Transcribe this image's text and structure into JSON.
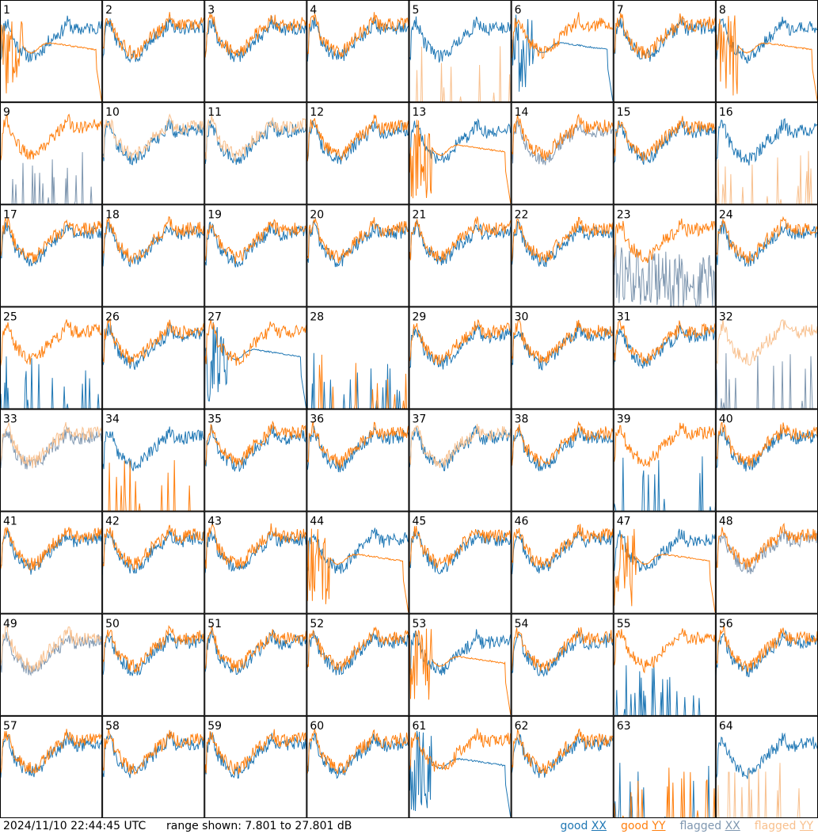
{
  "footer": {
    "timestamp": "2024/11/10 22:44:45 UTC",
    "range_text": "range shown: 7.801 to 27.801 dB"
  },
  "legend": [
    {
      "word": "good",
      "pol": "XX",
      "color": "#1f77b4"
    },
    {
      "word": "good",
      "pol": "YY",
      "color": "#ff7f0e"
    },
    {
      "word": "flagged",
      "pol": "XX",
      "color": "#7f97b0"
    },
    {
      "word": "flagged",
      "pol": "YY",
      "color": "#f8c08e"
    }
  ],
  "chart_data": {
    "type": "line",
    "ylim": [
      7.801,
      27.801
    ],
    "units": "dB",
    "colors": {
      "good_xx": "#1f77b4",
      "good_yy": "#ff7f0e",
      "flagged_xx": "#7f97b0",
      "flagged_yy": "#f8c08e"
    },
    "grid": {
      "rows": 8,
      "cols": 8
    },
    "panels": [
      {
        "id": "1",
        "xx": "good",
        "yy": "good",
        "xx_shape": "normal",
        "yy_shape": "drop"
      },
      {
        "id": "2",
        "xx": "good",
        "yy": "good",
        "xx_shape": "normal",
        "yy_shape": "normal"
      },
      {
        "id": "3",
        "xx": "good",
        "yy": "good",
        "xx_shape": "normal",
        "yy_shape": "normal"
      },
      {
        "id": "4",
        "xx": "good",
        "yy": "good",
        "xx_shape": "normal",
        "yy_shape": "normal"
      },
      {
        "id": "5",
        "xx": "good",
        "yy": "flagged",
        "xx_shape": "normal",
        "yy_shape": "low"
      },
      {
        "id": "6",
        "xx": "good",
        "yy": "good",
        "xx_shape": "drop",
        "yy_shape": "normal"
      },
      {
        "id": "7",
        "xx": "good",
        "yy": "good",
        "xx_shape": "normal",
        "yy_shape": "normal"
      },
      {
        "id": "8",
        "xx": "good",
        "yy": "good",
        "xx_shape": "normal",
        "yy_shape": "drop"
      },
      {
        "id": "9",
        "xx": "flagged",
        "yy": "good",
        "xx_shape": "low",
        "yy_shape": "normal"
      },
      {
        "id": "10",
        "xx": "good",
        "yy": "flagged",
        "xx_shape": "normal",
        "yy_shape": "normal"
      },
      {
        "id": "11",
        "xx": "good",
        "yy": "flagged",
        "xx_shape": "normal",
        "yy_shape": "normal"
      },
      {
        "id": "12",
        "xx": "good",
        "yy": "good",
        "xx_shape": "normal",
        "yy_shape": "normal"
      },
      {
        "id": "13",
        "xx": "good",
        "yy": "good",
        "xx_shape": "normal",
        "yy_shape": "drop"
      },
      {
        "id": "14",
        "xx": "flagged",
        "yy": "good",
        "xx_shape": "normal",
        "yy_shape": "normal"
      },
      {
        "id": "15",
        "xx": "good",
        "yy": "good",
        "xx_shape": "normal",
        "yy_shape": "normal"
      },
      {
        "id": "16",
        "xx": "good",
        "yy": "flagged",
        "xx_shape": "normal",
        "yy_shape": "low"
      },
      {
        "id": "17",
        "xx": "good",
        "yy": "good",
        "xx_shape": "normal",
        "yy_shape": "normal"
      },
      {
        "id": "18",
        "xx": "good",
        "yy": "good",
        "xx_shape": "normal",
        "yy_shape": "normal"
      },
      {
        "id": "19",
        "xx": "good",
        "yy": "good",
        "xx_shape": "normal",
        "yy_shape": "normal"
      },
      {
        "id": "20",
        "xx": "good",
        "yy": "good",
        "xx_shape": "normal",
        "yy_shape": "normal"
      },
      {
        "id": "21",
        "xx": "good",
        "yy": "good",
        "xx_shape": "normal",
        "yy_shape": "normal"
      },
      {
        "id": "22",
        "xx": "good",
        "yy": "good",
        "xx_shape": "normal",
        "yy_shape": "normal"
      },
      {
        "id": "23",
        "xx": "flagged",
        "yy": "good",
        "xx_shape": "noisy",
        "yy_shape": "normal"
      },
      {
        "id": "24",
        "xx": "good",
        "yy": "good",
        "xx_shape": "normal",
        "yy_shape": "normal"
      },
      {
        "id": "25",
        "xx": "good",
        "yy": "good",
        "xx_shape": "low",
        "yy_shape": "normal"
      },
      {
        "id": "26",
        "xx": "good",
        "yy": "good",
        "xx_shape": "normal",
        "yy_shape": "normal"
      },
      {
        "id": "27",
        "xx": "good",
        "yy": "good",
        "xx_shape": "drop",
        "yy_shape": "normal"
      },
      {
        "id": "28",
        "xx": "good",
        "yy": "good",
        "xx_shape": "low",
        "yy_shape": "low"
      },
      {
        "id": "29",
        "xx": "good",
        "yy": "good",
        "xx_shape": "normal",
        "yy_shape": "normal"
      },
      {
        "id": "30",
        "xx": "good",
        "yy": "good",
        "xx_shape": "normal",
        "yy_shape": "normal"
      },
      {
        "id": "31",
        "xx": "good",
        "yy": "good",
        "xx_shape": "normal",
        "yy_shape": "normal"
      },
      {
        "id": "32",
        "xx": "flagged",
        "yy": "flagged",
        "xx_shape": "low",
        "yy_shape": "normal"
      },
      {
        "id": "33",
        "xx": "flagged",
        "yy": "flagged",
        "xx_shape": "normal",
        "yy_shape": "normal"
      },
      {
        "id": "34",
        "xx": "good",
        "yy": "good",
        "xx_shape": "normal",
        "yy_shape": "low"
      },
      {
        "id": "35",
        "xx": "good",
        "yy": "good",
        "xx_shape": "normal",
        "yy_shape": "normal"
      },
      {
        "id": "36",
        "xx": "good",
        "yy": "good",
        "xx_shape": "normal",
        "yy_shape": "normal"
      },
      {
        "id": "37",
        "xx": "good",
        "yy": "flagged",
        "xx_shape": "normal",
        "yy_shape": "normal"
      },
      {
        "id": "38",
        "xx": "good",
        "yy": "good",
        "xx_shape": "normal",
        "yy_shape": "normal"
      },
      {
        "id": "39",
        "xx": "good",
        "yy": "good",
        "xx_shape": "low",
        "yy_shape": "normal"
      },
      {
        "id": "40",
        "xx": "good",
        "yy": "good",
        "xx_shape": "normal",
        "yy_shape": "normal"
      },
      {
        "id": "41",
        "xx": "good",
        "yy": "good",
        "xx_shape": "normal",
        "yy_shape": "normal"
      },
      {
        "id": "42",
        "xx": "good",
        "yy": "good",
        "xx_shape": "normal",
        "yy_shape": "normal"
      },
      {
        "id": "43",
        "xx": "good",
        "yy": "good",
        "xx_shape": "normal",
        "yy_shape": "normal"
      },
      {
        "id": "44",
        "xx": "good",
        "yy": "good",
        "xx_shape": "normal",
        "yy_shape": "drop"
      },
      {
        "id": "45",
        "xx": "good",
        "yy": "good",
        "xx_shape": "normal",
        "yy_shape": "normal"
      },
      {
        "id": "46",
        "xx": "good",
        "yy": "good",
        "xx_shape": "normal",
        "yy_shape": "normal"
      },
      {
        "id": "47",
        "xx": "good",
        "yy": "good",
        "xx_shape": "normal",
        "yy_shape": "drop"
      },
      {
        "id": "48",
        "xx": "flagged",
        "yy": "good",
        "xx_shape": "normal",
        "yy_shape": "normal"
      },
      {
        "id": "49",
        "xx": "flagged",
        "yy": "flagged",
        "xx_shape": "normal",
        "yy_shape": "normal"
      },
      {
        "id": "50",
        "xx": "good",
        "yy": "good",
        "xx_shape": "normal",
        "yy_shape": "normal"
      },
      {
        "id": "51",
        "xx": "good",
        "yy": "good",
        "xx_shape": "normal",
        "yy_shape": "normal"
      },
      {
        "id": "52",
        "xx": "good",
        "yy": "good",
        "xx_shape": "normal",
        "yy_shape": "normal"
      },
      {
        "id": "53",
        "xx": "good",
        "yy": "good",
        "xx_shape": "normal",
        "yy_shape": "drop"
      },
      {
        "id": "54",
        "xx": "good",
        "yy": "good",
        "xx_shape": "normal",
        "yy_shape": "normal"
      },
      {
        "id": "55",
        "xx": "good",
        "yy": "good",
        "xx_shape": "low",
        "yy_shape": "normal"
      },
      {
        "id": "56",
        "xx": "good",
        "yy": "good",
        "xx_shape": "normal",
        "yy_shape": "normal"
      },
      {
        "id": "57",
        "xx": "good",
        "yy": "good",
        "xx_shape": "normal",
        "yy_shape": "normal"
      },
      {
        "id": "58",
        "xx": "good",
        "yy": "good",
        "xx_shape": "normal",
        "yy_shape": "normal"
      },
      {
        "id": "59",
        "xx": "good",
        "yy": "good",
        "xx_shape": "normal",
        "yy_shape": "normal"
      },
      {
        "id": "60",
        "xx": "good",
        "yy": "good",
        "xx_shape": "normal",
        "yy_shape": "normal"
      },
      {
        "id": "61",
        "xx": "good",
        "yy": "good",
        "xx_shape": "drop",
        "yy_shape": "normal"
      },
      {
        "id": "62",
        "xx": "good",
        "yy": "good",
        "xx_shape": "normal",
        "yy_shape": "normal"
      },
      {
        "id": "63",
        "xx": "good",
        "yy": "good",
        "xx_shape": "low",
        "yy_shape": "low"
      },
      {
        "id": "64",
        "xx": "good",
        "yy": "flagged",
        "xx_shape": "normal",
        "yy_shape": "low"
      }
    ]
  }
}
